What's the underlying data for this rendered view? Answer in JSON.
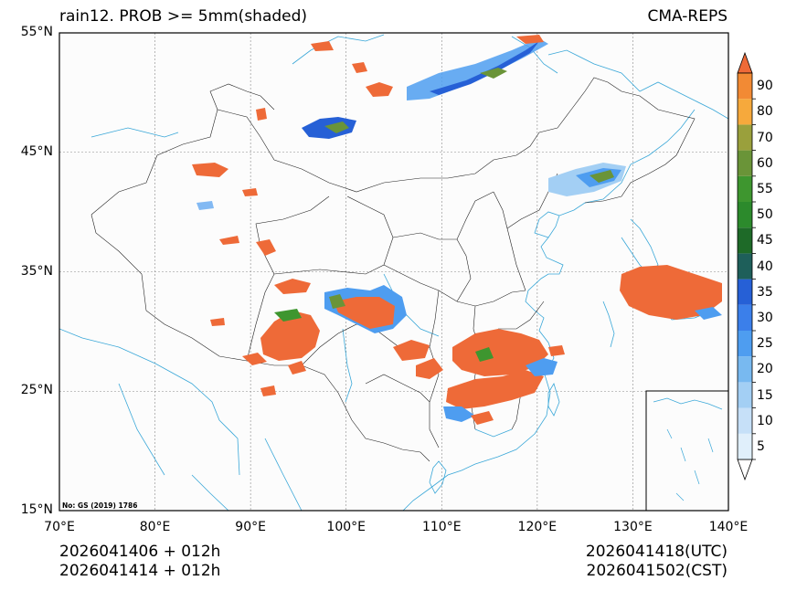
{
  "title": {
    "left": "rain12. PROB >= 5mm(shaded)",
    "right": "CMA-REPS"
  },
  "lat_ticks": [
    "55°N",
    "45°N",
    "35°N",
    "25°N",
    "15°N"
  ],
  "lon_ticks": [
    "70°E",
    "80°E",
    "90°E",
    "100°E",
    "110°E",
    "120°E",
    "130°E",
    "140°E"
  ],
  "map_extent": {
    "lon": [
      70,
      140
    ],
    "lat": [
      15,
      55
    ]
  },
  "footer": {
    "left_line1": "2026041406  +  012h",
    "left_line2": "2026041414  +  012h",
    "right_line1": "2026041418(UTC)",
    "right_line2": "2026041502(CST)"
  },
  "approval_note": "No: GS (2019) 1786",
  "colorbar": {
    "labels": [
      "5",
      "10",
      "15",
      "20",
      "25",
      "30",
      "35",
      "40",
      "45",
      "50",
      "55",
      "60",
      "70",
      "80",
      "90"
    ],
    "colors": [
      "#e0effb",
      "#c6e0f8",
      "#a3cff4",
      "#78b9f0",
      "#4e9df0",
      "#3b7fea",
      "#2660d6",
      "#1e5f5a",
      "#1e6a28",
      "#2c8a2c",
      "#3e962f",
      "#6a9438",
      "#9aa03c",
      "#f6a93c",
      "#f28a34",
      "#ee6a38"
    ]
  }
}
